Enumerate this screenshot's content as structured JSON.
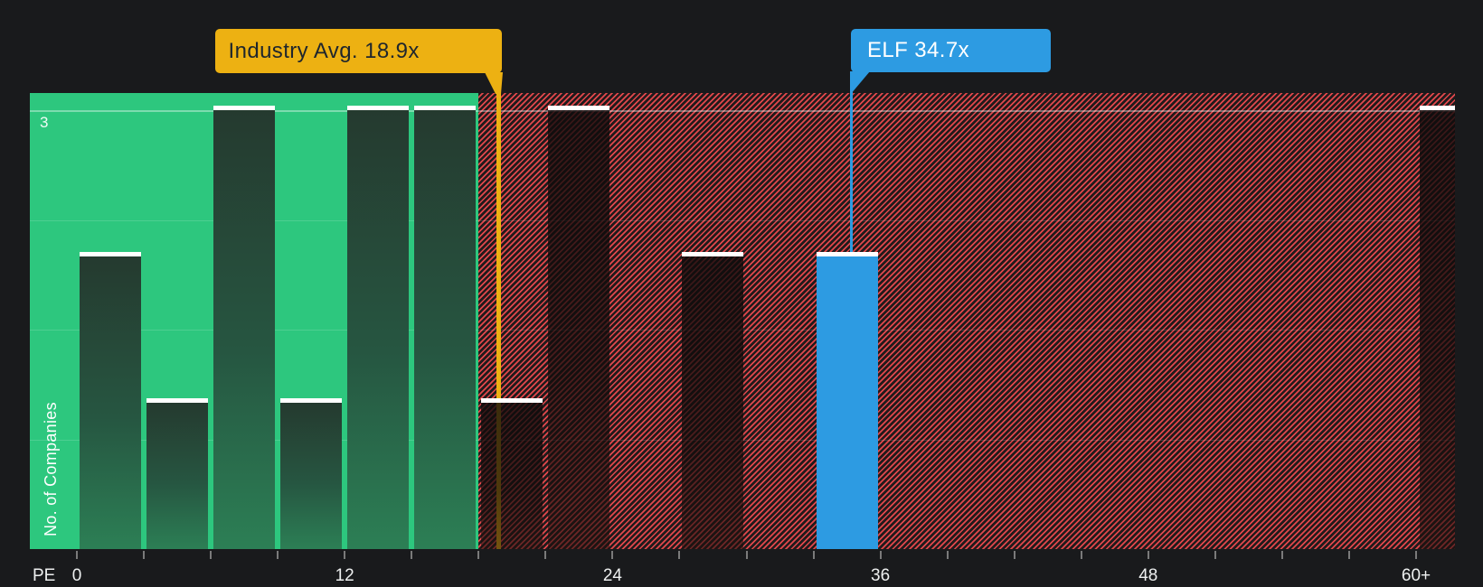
{
  "chart_data": {
    "type": "bar",
    "title": "",
    "xlabel": "PE",
    "ylabel": "No. of Companies",
    "x_axis": {
      "min": 0,
      "max": 60,
      "bin_width": 3,
      "tick_step": 3,
      "labeled_ticks": [
        {
          "value": 0,
          "label": "0"
        },
        {
          "value": 12,
          "label": "12"
        },
        {
          "value": 24,
          "label": "24"
        },
        {
          "value": 36,
          "label": "36"
        },
        {
          "value": 48,
          "label": "48"
        },
        {
          "value": 60,
          "label": "60+"
        }
      ]
    },
    "y_axis": {
      "min": 0,
      "max": 3,
      "top_tick_label": "3",
      "gridline_values": [
        0.75,
        1.5,
        2.25,
        3
      ]
    },
    "bins": [
      {
        "start": 0,
        "end": 3,
        "count": 2
      },
      {
        "start": 3,
        "end": 6,
        "count": 1
      },
      {
        "start": 6,
        "end": 9,
        "count": 3
      },
      {
        "start": 9,
        "end": 12,
        "count": 1
      },
      {
        "start": 12,
        "end": 15,
        "count": 3
      },
      {
        "start": 15,
        "end": 18,
        "count": 3
      },
      {
        "start": 18,
        "end": 21,
        "count": 1
      },
      {
        "start": 21,
        "end": 24,
        "count": 3
      },
      {
        "start": 24,
        "end": 27,
        "count": 0
      },
      {
        "start": 27,
        "end": 30,
        "count": 2
      },
      {
        "start": 30,
        "end": 33,
        "count": 0
      },
      {
        "start": 33,
        "end": 36,
        "count": 2,
        "highlight": "ELF"
      },
      {
        "start": 36,
        "end": 39,
        "count": 0
      },
      {
        "start": 39,
        "end": 42,
        "count": 0
      },
      {
        "start": 42,
        "end": 45,
        "count": 0
      },
      {
        "start": 45,
        "end": 48,
        "count": 0
      },
      {
        "start": 48,
        "end": 51,
        "count": 0
      },
      {
        "start": 51,
        "end": 54,
        "count": 0
      },
      {
        "start": 54,
        "end": 57,
        "count": 0
      },
      {
        "start": 57,
        "end": 60,
        "count": 0
      },
      {
        "start": 60,
        "end": null,
        "count": 3,
        "overflow": true
      }
    ],
    "zones": {
      "below_average_max": 18
    },
    "annotations": [
      {
        "id": "industry_avg",
        "label": "Industry Avg. 18.9x",
        "value": 18.9
      },
      {
        "id": "elf",
        "label": "ELF 34.7x",
        "value": 34.7
      }
    ],
    "colors": {
      "below_average_zone": "#2dc77e",
      "above_average_stripe": "#e2474b",
      "above_average_bg": "#1f1b1c",
      "industry_avg_accent": "#edb112",
      "industry_avg_text": "#1f262d",
      "elf_accent": "#2d9be2",
      "elf_text": "#ffffff",
      "bar_cap": "#ffffff"
    }
  }
}
